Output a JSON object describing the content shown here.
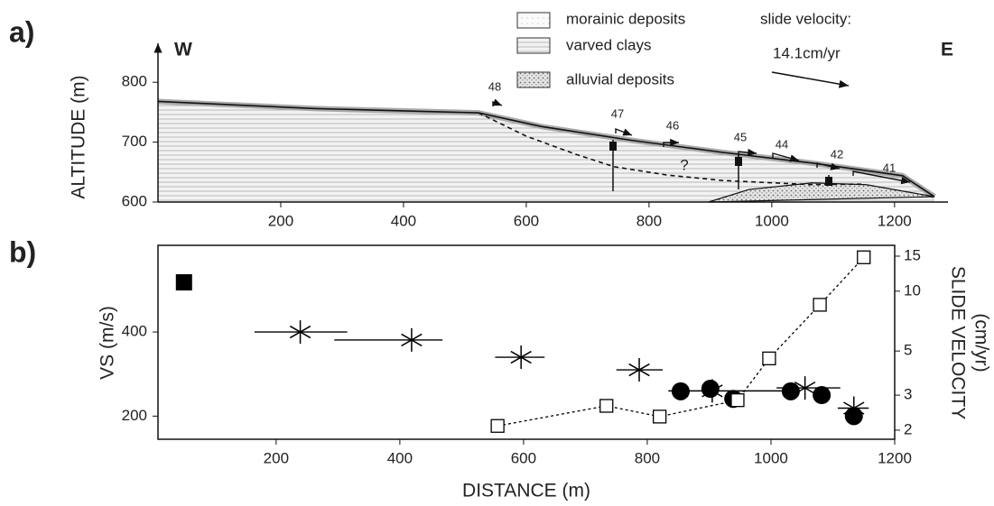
{
  "chart_data": [
    {
      "type": "cross-section",
      "panel": "a)",
      "ylabel": "ALTITUDE (m)",
      "left_label": "W",
      "right_label": "E",
      "xlim": [
        0,
        1287
      ],
      "ylim": [
        600,
        847
      ],
      "xticks": [
        200,
        400,
        600,
        800,
        1000,
        1200
      ],
      "yticks": [
        600,
        700,
        800
      ],
      "surface": {
        "x": [
          0,
          257,
          522,
          625,
          772,
          919,
          1066,
          1213,
          1265
        ],
        "y": [
          768,
          756,
          749,
          726,
          703,
          683,
          665,
          644,
          609
        ]
      },
      "slip_surface": {
        "x": [
          522,
          600,
          680,
          743,
          830,
          919,
          1066,
          1150
        ],
        "y": [
          749,
          710,
          680,
          659,
          645,
          636,
          629,
          630
        ]
      },
      "alluvial": {
        "x": [
          897,
          963,
          1066,
          1154,
          1265
        ],
        "y": [
          600,
          621,
          632,
          629,
          609
        ]
      },
      "legend": [
        "morainic deposits",
        "varved clays",
        "alluvial deposits"
      ],
      "velocity_label": "slide velocity:",
      "velocity_scale": "14.1cm/yr",
      "annotations": [
        "48",
        "47",
        "46",
        "45",
        "44",
        "42",
        "41",
        "?"
      ]
    },
    {
      "type": "scatter",
      "panel": "b)",
      "xlabel": "DISTANCE (m)",
      "ylabel": "VS (m/s)",
      "y2label": [
        "SLIDE VELOCITY",
        "(cm/yr)"
      ],
      "xlim": [
        9,
        1200
      ],
      "ylim": [
        145,
        606
      ],
      "y2lim": [
        1.8,
        17
      ],
      "y2log": true,
      "xticks": [
        200,
        400,
        600,
        800,
        1000,
        1200
      ],
      "yticks": [
        200,
        400
      ],
      "y2ticks": [
        2,
        3,
        5,
        10,
        15
      ],
      "series": [
        {
          "marker": "filled-square",
          "color": "#000000",
          "x": [
            51
          ],
          "values": [
            518
          ]
        },
        {
          "marker": "asterisk",
          "color": "#000000",
          "x": [
            239,
            419,
            596,
            787,
            905,
            1055,
            1134
          ],
          "values": [
            400,
            381,
            340,
            310,
            260,
            267,
            219
          ],
          "xmin": [
            165,
            294,
            554,
            750,
            834,
            1009,
            1108
          ],
          "xmax": [
            315,
            469,
            634,
            825,
            1020,
            1112,
            1158
          ]
        },
        {
          "marker": "filled-circle",
          "color": "#000000",
          "x": [
            854,
            902,
            939,
            1032,
            1082,
            1134
          ],
          "values": [
            259,
            265,
            241,
            259,
            250,
            200
          ]
        },
        {
          "marker": "open-square",
          "color": "#000000",
          "axis": "y2",
          "line": "dotted",
          "x": [
            558,
            734,
            820,
            946,
            997,
            1079,
            1150
          ],
          "values": [
            2.1,
            2.65,
            2.34,
            2.83,
            4.59,
            8.54,
            14.8
          ]
        }
      ]
    }
  ]
}
